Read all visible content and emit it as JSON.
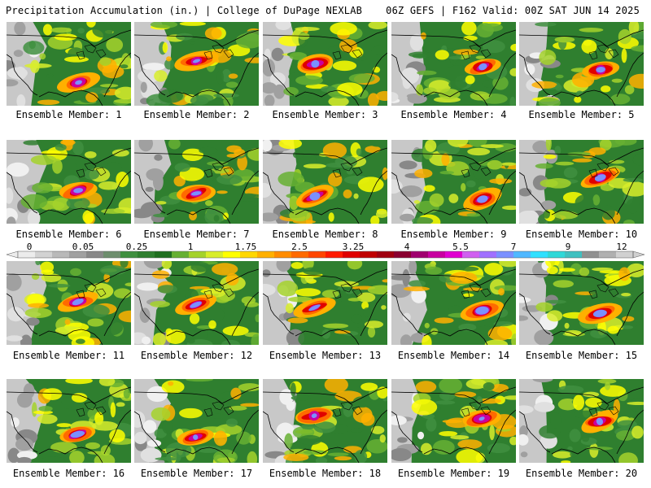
{
  "header": {
    "title_left": "Precipitation Accumulation (in.) | College of DuPage NEXLAB",
    "title_right": "06Z GEFS | F162 Valid: 00Z SAT JUN 14 2025"
  },
  "panels": [
    {
      "label": "Ensemble Member: 1"
    },
    {
      "label": "Ensemble Member: 2"
    },
    {
      "label": "Ensemble Member: 3"
    },
    {
      "label": "Ensemble Member: 4"
    },
    {
      "label": "Ensemble Member: 5"
    },
    {
      "label": "Ensemble Member: 6"
    },
    {
      "label": "Ensemble Member: 7"
    },
    {
      "label": "Ensemble Member: 8"
    },
    {
      "label": "Ensemble Member: 9"
    },
    {
      "label": "Ensemble Member: 10"
    },
    {
      "label": "Ensemble Member: 11"
    },
    {
      "label": "Ensemble Member: 12"
    },
    {
      "label": "Ensemble Member: 13"
    },
    {
      "label": "Ensemble Member: 14"
    },
    {
      "label": "Ensemble Member: 15"
    },
    {
      "label": "Ensemble Member: 16"
    },
    {
      "label": "Ensemble Member: 17"
    },
    {
      "label": "Ensemble Member: 18"
    },
    {
      "label": "Ensemble Member: 19"
    },
    {
      "label": "Ensemble Member: 20"
    }
  ],
  "colorbar": {
    "tick_labels": [
      "0",
      "0.05",
      "0.25",
      "1",
      "1.75",
      "2.5",
      "3.25",
      "4",
      "5.5",
      "7",
      "9",
      "12"
    ],
    "colors": [
      "#ececec",
      "#d2d2d2",
      "#b9b9b9",
      "#a0a0a0",
      "#888888",
      "#6e8e6e",
      "#3f8f3f",
      "#2f7f2f",
      "#1f6f1f",
      "#66b032",
      "#a5d22b",
      "#d8ed2a",
      "#ffff00",
      "#ffd700",
      "#ffb000",
      "#ff8c00",
      "#ff6a00",
      "#ff4500",
      "#ff1a00",
      "#e00000",
      "#c00000",
      "#a00010",
      "#8a0030",
      "#a0006e",
      "#c800a0",
      "#e000d0",
      "#d060f0",
      "#a070ff",
      "#7a90ff",
      "#50b8ff",
      "#30e0ff",
      "#30d8d8",
      "#40c0c0",
      "#909090",
      "#b0b0b0",
      "#d0d0d0"
    ]
  },
  "map_colors": {
    "background": "#2f7f2f",
    "outline": "#000000"
  }
}
